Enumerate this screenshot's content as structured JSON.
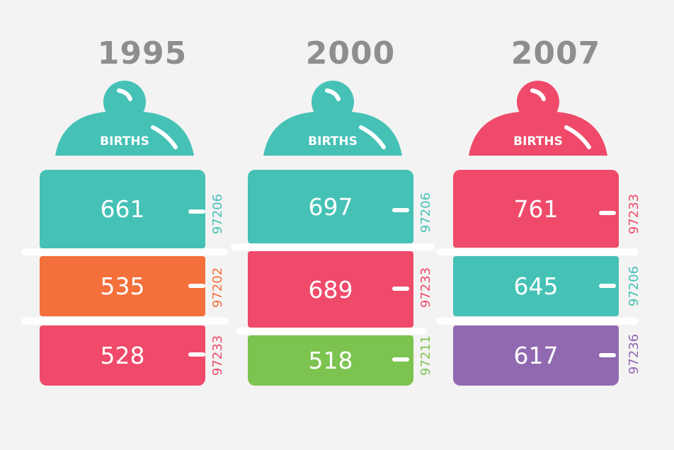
{
  "colors": {
    "teal": "#45c1b6",
    "orange": "#f4703b",
    "pink": "#ef4a6a",
    "green": "#7dc350",
    "purple": "#9169b0",
    "year_text": "#8e8e8e",
    "background": "#f4f3f3"
  },
  "chart_data": {
    "type": "table",
    "cap_label": "BIRTHS",
    "columns": [
      {
        "year": "1995",
        "cap_color": "teal",
        "segments": [
          {
            "births": 661,
            "zip": "97206",
            "color": "teal"
          },
          {
            "births": 535,
            "zip": "97202",
            "color": "orange"
          },
          {
            "births": 528,
            "zip": "97233",
            "color": "pink"
          }
        ]
      },
      {
        "year": "2000",
        "cap_color": "teal",
        "segments": [
          {
            "births": 697,
            "zip": "97206",
            "color": "teal"
          },
          {
            "births": 689,
            "zip": "97233",
            "color": "pink"
          },
          {
            "births": 518,
            "zip": "97211",
            "color": "green"
          }
        ]
      },
      {
        "year": "2007",
        "cap_color": "pink",
        "segments": [
          {
            "births": 761,
            "zip": "97233",
            "color": "pink"
          },
          {
            "births": 645,
            "zip": "97206",
            "color": "teal"
          },
          {
            "births": 617,
            "zip": "97236",
            "color": "purple"
          }
        ]
      }
    ]
  }
}
